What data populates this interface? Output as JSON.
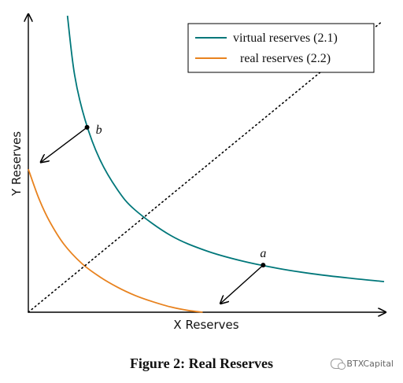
{
  "chart_data": {
    "type": "line",
    "title": "",
    "xlabel": "X Reserves",
    "ylabel": "Y Reserves",
    "xlim": [
      0,
      10
    ],
    "ylim": [
      0,
      8.5
    ],
    "grid": false,
    "legend_position": "top-right",
    "series": [
      {
        "name": "virtual reserves (2.1)",
        "color": "#00777a",
        "x": [
          1.1,
          1.3,
          1.6,
          2.0,
          2.5,
          3.0,
          4.0,
          5.0,
          6.0,
          7.0,
          8.0,
          9.0,
          10.0
        ],
        "y": [
          8.5,
          6.8,
          5.5,
          4.4,
          3.52,
          2.93,
          2.2,
          1.76,
          1.47,
          1.26,
          1.1,
          0.98,
          0.88
        ]
      },
      {
        "name": "real reserves (2.2)",
        "color": "#e8821e",
        "x": [
          0.0,
          0.3,
          0.6,
          1.0,
          1.5,
          2.0,
          2.5,
          3.0,
          3.5,
          4.0,
          4.5,
          4.9
        ],
        "y": [
          4.1,
          3.25,
          2.6,
          1.95,
          1.4,
          1.02,
          0.72,
          0.48,
          0.3,
          0.15,
          0.05,
          0.0
        ]
      },
      {
        "name": "",
        "color": "#000000",
        "style": "dotted",
        "x": [
          0.0,
          9.9
        ],
        "y": [
          0.0,
          8.3
        ]
      }
    ],
    "points": [
      {
        "label": "b",
        "x": 1.65,
        "y": 5.3
      },
      {
        "label": "a",
        "x": 6.6,
        "y": 1.35
      }
    ],
    "arrows": [
      {
        "from": [
          1.65,
          5.3
        ],
        "to": [
          0.35,
          4.3
        ]
      },
      {
        "from": [
          6.6,
          1.35
        ],
        "to": [
          5.4,
          0.25
        ]
      }
    ]
  },
  "caption": "Figure 2: Real Reserves",
  "watermark": "BTXCapital"
}
